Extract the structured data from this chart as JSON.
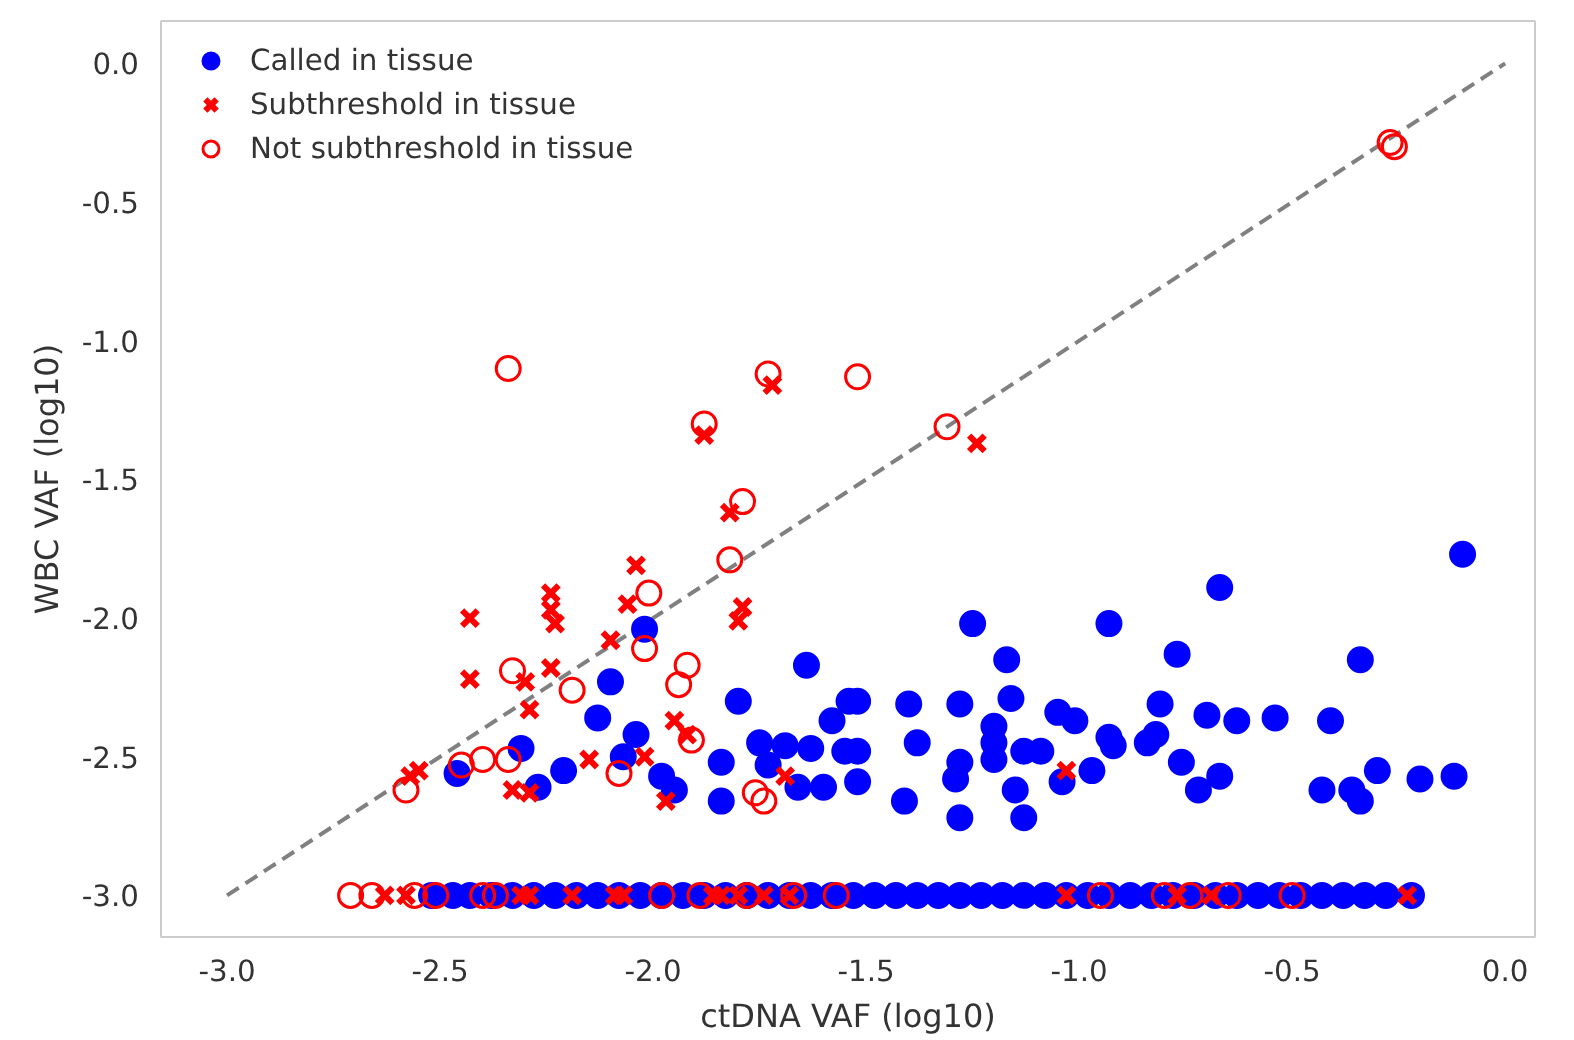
{
  "chart_data": {
    "type": "scatter",
    "xlabel": "ctDNA VAF (log10)",
    "ylabel": "WBC VAF (log10)",
    "xlim": [
      -3.155,
      0.07
    ],
    "ylim": [
      -3.15,
      0.153
    ],
    "xticks": [
      {
        "value": -3.0,
        "label": "-3.0"
      },
      {
        "value": -2.5,
        "label": "-2.5"
      },
      {
        "value": -2.0,
        "label": "-2.0"
      },
      {
        "value": -1.5,
        "label": "-1.5"
      },
      {
        "value": -1.0,
        "label": "-1.0"
      },
      {
        "value": -0.5,
        "label": "-0.5"
      },
      {
        "value": 0.0,
        "label": "0.0"
      }
    ],
    "yticks": [
      {
        "value": -3.0,
        "label": "-3.0"
      },
      {
        "value": -2.5,
        "label": "-2.5"
      },
      {
        "value": -2.0,
        "label": "-2.0"
      },
      {
        "value": -1.5,
        "label": "-1.5"
      },
      {
        "value": -1.0,
        "label": "-1.0"
      },
      {
        "value": -0.5,
        "label": "-0.5"
      },
      {
        "value": 0.0,
        "label": "0.0"
      }
    ],
    "grid": false,
    "legend": "top left",
    "series": [
      {
        "type": "line",
        "color": "#808080",
        "line_style": "dashed",
        "marker": "none",
        "x": [
          -3.0,
          0.0
        ],
        "values": [
          -3.0,
          0.0
        ]
      },
      {
        "name": "Called in tissue",
        "color": "#0000ff",
        "marker": "circle",
        "x": [
          -2.52,
          -2.47,
          -2.43,
          -2.38,
          -2.33,
          -2.28,
          -2.23,
          -2.18,
          -2.13,
          -2.08,
          -2.03,
          -1.98,
          -1.93,
          -1.88,
          -1.83,
          -1.78,
          -1.73,
          -1.68,
          -1.63,
          -1.58,
          -1.53,
          -1.48,
          -1.43,
          -1.38,
          -1.33,
          -1.28,
          -1.23,
          -1.18,
          -1.13,
          -1.08,
          -1.03,
          -0.98,
          -0.93,
          -0.88,
          -0.83,
          -0.78,
          -0.73,
          -0.68,
          -0.63,
          -0.58,
          -0.53,
          -0.48,
          -0.43,
          -0.38,
          -0.33,
          -0.28,
          -0.22,
          -2.02,
          -1.64,
          -2.1,
          -1.8,
          -2.13,
          -1.54,
          -1.58,
          -2.31,
          -2.04,
          -2.07,
          -1.75,
          -1.69,
          -1.63,
          -1.55,
          -2.21,
          -2.46,
          -1.84,
          -1.73,
          -1.98,
          -2.27,
          -1.95,
          -1.84,
          -1.66,
          -1.6,
          -0.1,
          -0.67,
          -1.25,
          -0.93,
          -1.17,
          -0.77,
          -0.34,
          -1.52,
          -1.4,
          -1.28,
          -1.16,
          -0.81,
          -1.05,
          -1.01,
          -1.2,
          -0.7,
          -0.63,
          -0.54,
          -0.41,
          -1.38,
          -1.52,
          -1.2,
          -0.93,
          -0.92,
          -0.82,
          -0.84,
          -1.13,
          -1.09,
          -1.28,
          -1.2,
          -1.29,
          -0.97,
          -0.76,
          -0.3,
          -1.04,
          -0.67,
          -0.72,
          -0.12,
          -0.2,
          -1.52,
          -0.43,
          -0.36,
          -0.34,
          -1.41,
          -1.15,
          -1.28,
          -1.13
        ],
        "values": [
          -3.0,
          -3.0,
          -3.0,
          -3.0,
          -3.0,
          -3.0,
          -3.0,
          -3.0,
          -3.0,
          -3.0,
          -3.0,
          -3.0,
          -3.0,
          -3.0,
          -3.0,
          -3.0,
          -3.0,
          -3.0,
          -3.0,
          -3.0,
          -3.0,
          -3.0,
          -3.0,
          -3.0,
          -3.0,
          -3.0,
          -3.0,
          -3.0,
          -3.0,
          -3.0,
          -3.0,
          -3.0,
          -3.0,
          -3.0,
          -3.0,
          -3.0,
          -3.0,
          -3.0,
          -3.0,
          -3.0,
          -3.0,
          -3.0,
          -3.0,
          -3.0,
          -3.0,
          -3.0,
          -3.0,
          -2.04,
          -2.17,
          -2.23,
          -2.3,
          -2.36,
          -2.3,
          -2.37,
          -2.47,
          -2.42,
          -2.5,
          -2.45,
          -2.46,
          -2.47,
          -2.48,
          -2.55,
          -2.56,
          -2.52,
          -2.53,
          -2.57,
          -2.61,
          -2.62,
          -2.66,
          -2.61,
          -2.61,
          -1.77,
          -1.89,
          -2.02,
          -2.02,
          -2.15,
          -2.13,
          -2.15,
          -2.3,
          -2.31,
          -2.31,
          -2.29,
          -2.31,
          -2.34,
          -2.37,
          -2.39,
          -2.35,
          -2.37,
          -2.36,
          -2.37,
          -2.45,
          -2.48,
          -2.45,
          -2.43,
          -2.46,
          -2.42,
          -2.45,
          -2.48,
          -2.48,
          -2.52,
          -2.51,
          -2.58,
          -2.55,
          -2.52,
          -2.55,
          -2.59,
          -2.57,
          -2.62,
          -2.57,
          -2.58,
          -2.59,
          -2.62,
          -2.62,
          -2.66,
          -2.66,
          -2.62,
          -2.72,
          -2.72
        ]
      },
      {
        "name": "Subthreshold in tissue",
        "color": "#ff0000",
        "marker": "cross",
        "x": [
          -1.72,
          -1.88,
          -1.24,
          -1.82,
          -2.04,
          -2.43,
          -2.24,
          -2.24,
          -2.23,
          -2.06,
          -1.79,
          -1.8,
          -2.1,
          -2.43,
          -2.3,
          -2.24,
          -2.29,
          -1.95,
          -1.92,
          -2.02,
          -2.15,
          -2.57,
          -2.55,
          -2.33,
          -2.29,
          -1.97,
          -1.69,
          -1.03,
          -2.63,
          -2.58,
          -2.31,
          -2.29,
          -2.19,
          -2.09,
          -2.07,
          -1.86,
          -1.84,
          -1.8,
          -1.74,
          -1.68,
          -1.03,
          -0.77,
          -0.69,
          -0.23
        ],
        "values": [
          -1.16,
          -1.34,
          -1.37,
          -1.62,
          -1.81,
          -2.0,
          -1.91,
          -1.97,
          -2.02,
          -1.95,
          -1.96,
          -2.01,
          -2.08,
          -2.22,
          -2.23,
          -2.18,
          -2.33,
          -2.37,
          -2.42,
          -2.5,
          -2.51,
          -2.57,
          -2.55,
          -2.62,
          -2.63,
          -2.66,
          -2.57,
          -2.55,
          -3.0,
          -3.0,
          -3.0,
          -3.0,
          -3.0,
          -3.0,
          -3.0,
          -3.0,
          -3.0,
          -3.0,
          -3.0,
          -3.0,
          -3.0,
          -3.0,
          -3.0,
          -3.0
        ]
      },
      {
        "name": "Not subthreshold in tissue",
        "color": "#ff0000",
        "marker": "circle_open",
        "x": [
          -2.34,
          -1.88,
          -1.73,
          -1.52,
          -1.31,
          -1.79,
          -1.82,
          -2.01,
          -2.02,
          -1.92,
          -1.94,
          -2.33,
          -2.19,
          -2.45,
          -2.4,
          -2.34,
          -2.08,
          -1.91,
          -2.58,
          -1.76,
          -1.74,
          -0.27,
          -0.26,
          -2.71,
          -2.66,
          -2.56,
          -2.51,
          -2.4,
          -2.37,
          -1.98,
          -1.89,
          -1.78,
          -1.67,
          -1.57,
          -0.95,
          -0.8,
          -0.74,
          -0.65,
          -0.5
        ],
        "values": [
          -1.1,
          -1.3,
          -1.12,
          -1.13,
          -1.31,
          -1.58,
          -1.79,
          -1.91,
          -2.11,
          -2.17,
          -2.24,
          -2.19,
          -2.26,
          -2.53,
          -2.51,
          -2.51,
          -2.56,
          -2.44,
          -2.62,
          -2.63,
          -2.66,
          -0.285,
          -0.3,
          -3.0,
          -3.0,
          -3.0,
          -3.0,
          -3.0,
          -3.0,
          -3.0,
          -3.0,
          -3.0,
          -3.0,
          -3.0,
          -3.0,
          -3.0,
          -3.0,
          -3.0,
          -3.0
        ]
      }
    ]
  }
}
